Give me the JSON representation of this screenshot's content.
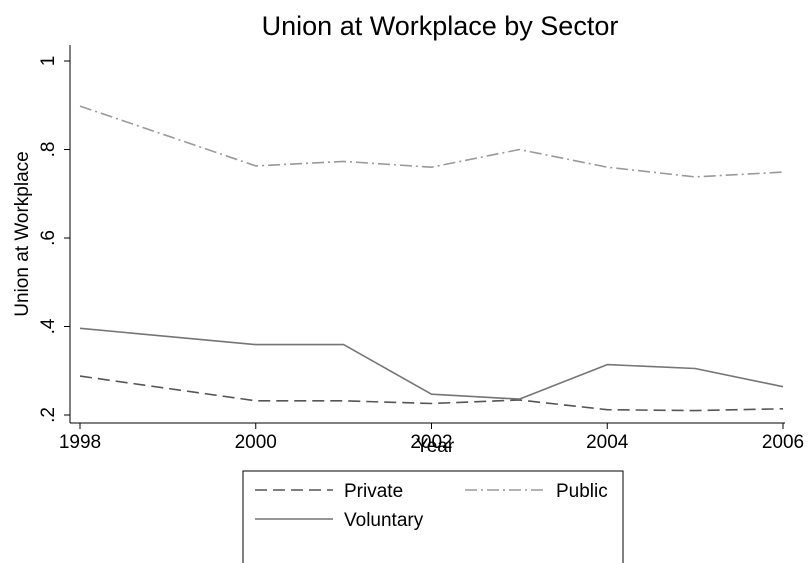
{
  "chart_data": {
    "type": "line",
    "title": "Union at Workplace by Sector",
    "xlabel": "Year",
    "ylabel": "Union at Workplace",
    "xlim": [
      1998,
      2006
    ],
    "ylim": [
      0.2,
      1.0
    ],
    "x_ticks": [
      1998,
      2000,
      2002,
      2004,
      2006
    ],
    "y_ticks": [
      0.2,
      0.4,
      0.6,
      0.8,
      1.0
    ],
    "y_tick_labels": [
      ".2",
      ".4",
      ".6",
      ".8",
      "1"
    ],
    "x": [
      1998,
      2000,
      2001,
      2002,
      2003,
      2004,
      2005,
      2006
    ],
    "grid": false,
    "legend_position": "bottom",
    "series": [
      {
        "name": "Private",
        "style": "dashed",
        "color": "#555555",
        "values": [
          0.288,
          0.232,
          0.232,
          0.226,
          0.234,
          0.212,
          0.21,
          0.214
        ]
      },
      {
        "name": "Public",
        "style": "dash-dot",
        "color": "#9a9a9a",
        "values": [
          0.898,
          0.763,
          0.773,
          0.76,
          0.8,
          0.76,
          0.738,
          0.749
        ]
      },
      {
        "name": "Voluntary",
        "style": "solid",
        "color": "#757575",
        "values": [
          0.396,
          0.359,
          0.359,
          0.247,
          0.236,
          0.314,
          0.305,
          0.264
        ]
      }
    ]
  }
}
